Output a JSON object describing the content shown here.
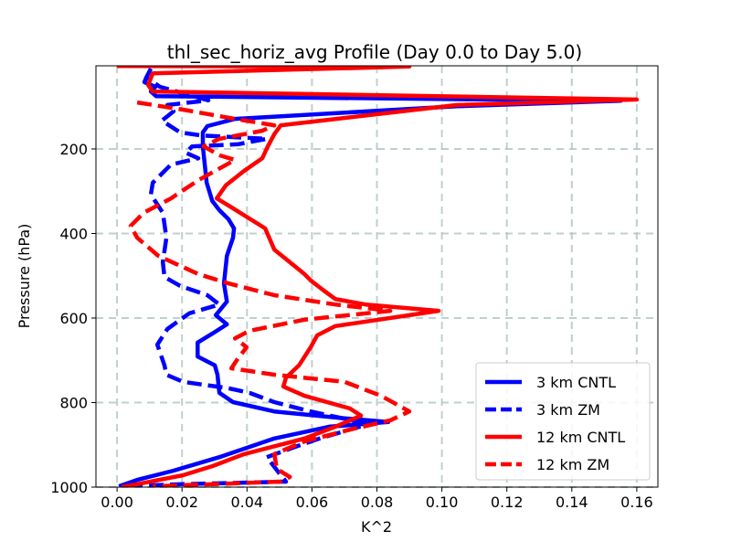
{
  "chart_data": {
    "type": "line",
    "title": "thl_sec_horiz_avg Profile (Day 0.0 to Day 5.0)",
    "xlabel": "K^2",
    "ylabel": "Pressure (hPa)",
    "xlim": [
      -0.0065,
      0.1665
    ],
    "ylim": [
      1000,
      3.3
    ],
    "y_inverted": true,
    "grid": true,
    "legend_position": "lower-right",
    "xticks": [
      0.0,
      0.02,
      0.04,
      0.06,
      0.08,
      0.1,
      0.12,
      0.14,
      0.16
    ],
    "xtick_labels": [
      "0.00",
      "0.02",
      "0.04",
      "0.06",
      "0.08",
      "0.10",
      "0.12",
      "0.14",
      "0.16"
    ],
    "yticks": [
      200,
      400,
      600,
      800,
      1000
    ],
    "ytick_labels": [
      "200",
      "400",
      "600",
      "800",
      "1000"
    ],
    "series": [
      {
        "name": "3 km CNTL",
        "color": "#0000ff",
        "style": "solid",
        "points": [
          [
            0.009,
            31
          ],
          [
            0.0084,
            42
          ],
          [
            0.0118,
            53
          ],
          [
            0.0104,
            64
          ],
          [
            0.012,
            75
          ],
          [
            0.155,
            86
          ],
          [
            0.1046,
            99
          ],
          [
            0.0363,
            129
          ],
          [
            0.0278,
            146
          ],
          [
            0.0264,
            161
          ],
          [
            0.0264,
            194
          ],
          [
            0.027,
            237
          ],
          [
            0.0276,
            280
          ],
          [
            0.0293,
            323
          ],
          [
            0.0315,
            345
          ],
          [
            0.0343,
            366
          ],
          [
            0.036,
            388
          ],
          [
            0.0357,
            410
          ],
          [
            0.0338,
            453
          ],
          [
            0.0329,
            518
          ],
          [
            0.0338,
            561
          ],
          [
            0.0315,
            583
          ],
          [
            0.0304,
            593
          ],
          [
            0.0338,
            615
          ],
          [
            0.0293,
            637
          ],
          [
            0.0248,
            658
          ],
          [
            0.0248,
            691
          ],
          [
            0.0301,
            712
          ],
          [
            0.0309,
            734
          ],
          [
            0.0315,
            777
          ],
          [
            0.0357,
            799
          ],
          [
            0.0484,
            821
          ],
          [
            0.0681,
            836
          ],
          [
            0.0835,
            846
          ],
          [
            0.0653,
            857
          ],
          [
            0.0484,
            885
          ],
          [
            0.0315,
            929
          ],
          [
            0.0174,
            961
          ],
          [
            0.0062,
            983
          ],
          [
            0.0006,
            998
          ]
        ]
      },
      {
        "name": "3 km ZM",
        "color": "#0000ff",
        "style": "dashed",
        "points": [
          [
            0.0104,
            10
          ],
          [
            0.009,
            31
          ],
          [
            0.0132,
            53
          ],
          [
            0.0281,
            85
          ],
          [
            0.0155,
            96
          ],
          [
            0.0174,
            111
          ],
          [
            0.0138,
            133
          ],
          [
            0.0194,
            161
          ],
          [
            0.0259,
            168
          ],
          [
            0.0461,
            176
          ],
          [
            0.0371,
            189
          ],
          [
            0.0231,
            194
          ],
          [
            0.0211,
            209
          ],
          [
            0.025,
            222
          ],
          [
            0.0166,
            237
          ],
          [
            0.011,
            280
          ],
          [
            0.0104,
            308
          ],
          [
            0.0141,
            351
          ],
          [
            0.0152,
            410
          ],
          [
            0.0141,
            468
          ],
          [
            0.0146,
            503
          ],
          [
            0.0194,
            524
          ],
          [
            0.0278,
            546
          ],
          [
            0.0315,
            568
          ],
          [
            0.0222,
            589
          ],
          [
            0.0155,
            626
          ],
          [
            0.0124,
            663
          ],
          [
            0.0146,
            712
          ],
          [
            0.0152,
            734
          ],
          [
            0.0203,
            751
          ],
          [
            0.0343,
            766
          ],
          [
            0.0408,
            777
          ],
          [
            0.0484,
            799
          ],
          [
            0.0596,
            821
          ],
          [
            0.0723,
            842
          ],
          [
            0.0765,
            853
          ],
          [
            0.0624,
            885
          ],
          [
            0.054,
            907
          ],
          [
            0.0461,
            929
          ],
          [
            0.0504,
            972
          ],
          [
            0.052,
            987
          ],
          [
            0.0203,
            993
          ],
          [
            0.0014,
            998
          ]
        ]
      },
      {
        "name": "12 km CNTL",
        "color": "#ff0000",
        "style": "solid",
        "points": [
          [
            0.0,
            4
          ],
          [
            0.09,
            5
          ],
          [
            0.011,
            21
          ],
          [
            0.0096,
            49
          ],
          [
            0.011,
            64
          ],
          [
            0.16,
            83
          ],
          [
            0.1046,
            96
          ],
          [
            0.0504,
            144
          ],
          [
            0.0484,
            165
          ],
          [
            0.0464,
            194
          ],
          [
            0.0447,
            222
          ],
          [
            0.0391,
            252
          ],
          [
            0.0335,
            286
          ],
          [
            0.0307,
            317
          ],
          [
            0.0352,
            338
          ],
          [
            0.0456,
            388
          ],
          [
            0.0484,
            438
          ],
          [
            0.0577,
            496
          ],
          [
            0.0596,
            511
          ],
          [
            0.0633,
            533
          ],
          [
            0.0672,
            555
          ],
          [
            0.0765,
            568
          ],
          [
            0.099,
            583
          ],
          [
            0.0672,
            619
          ],
          [
            0.0616,
            641
          ],
          [
            0.0596,
            669
          ],
          [
            0.056,
            712
          ],
          [
            0.052,
            741
          ],
          [
            0.0512,
            762
          ],
          [
            0.0577,
            784
          ],
          [
            0.0717,
            814
          ],
          [
            0.0751,
            831
          ],
          [
            0.0672,
            857
          ],
          [
            0.0577,
            885
          ],
          [
            0.0391,
            922
          ],
          [
            0.0295,
            950
          ],
          [
            0.0203,
            972
          ],
          [
            0.0062,
            993
          ],
          [
            0.0014,
            1000
          ]
        ]
      },
      {
        "name": "12 km ZM",
        "color": "#ff0000",
        "style": "dashed",
        "points": [
          [
            0.0062,
            90
          ],
          [
            0.0203,
            107
          ],
          [
            0.0363,
            129
          ],
          [
            0.0484,
            144
          ],
          [
            0.0447,
            157
          ],
          [
            0.0315,
            176
          ],
          [
            0.0267,
            194
          ],
          [
            0.0315,
            215
          ],
          [
            0.0363,
            226
          ],
          [
            0.025,
            274
          ],
          [
            0.0166,
            317
          ],
          [
            0.0082,
            351
          ],
          [
            0.0042,
            382
          ],
          [
            0.0062,
            410
          ],
          [
            0.0127,
            453
          ],
          [
            0.025,
            496
          ],
          [
            0.0343,
            518
          ],
          [
            0.0484,
            546
          ],
          [
            0.0672,
            568
          ],
          [
            0.0841,
            583
          ],
          [
            0.0577,
            604
          ],
          [
            0.0408,
            630
          ],
          [
            0.0363,
            648
          ],
          [
            0.0399,
            669
          ],
          [
            0.0371,
            697
          ],
          [
            0.0352,
            719
          ],
          [
            0.0484,
            734
          ],
          [
            0.07,
            751
          ],
          [
            0.0813,
            784
          ],
          [
            0.09,
            821
          ],
          [
            0.0841,
            842
          ],
          [
            0.0717,
            864
          ],
          [
            0.0577,
            892
          ],
          [
            0.0484,
            922
          ],
          [
            0.0492,
            957
          ],
          [
            0.0532,
            976
          ],
          [
            0.0504,
            987
          ],
          [
            0.0295,
            993
          ],
          [
            0.011,
            998
          ]
        ]
      }
    ]
  }
}
